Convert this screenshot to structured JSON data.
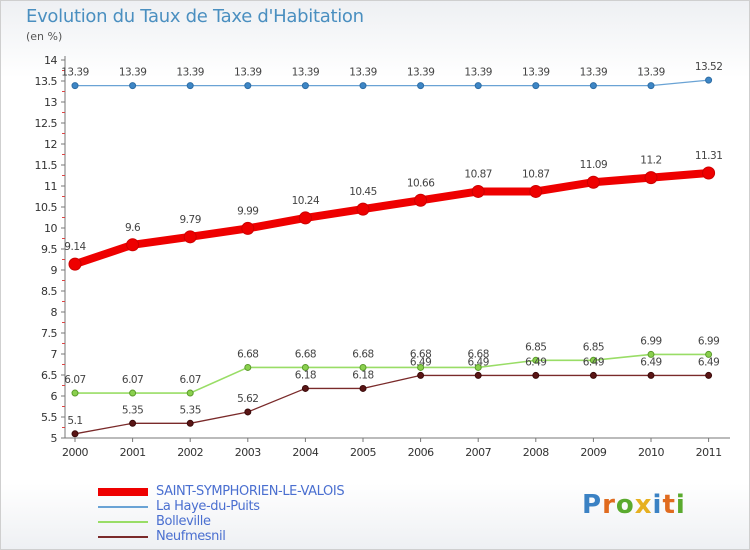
{
  "title": "Evolution du Taux de Taxe d'Habitation",
  "subtitle": "(en %)",
  "logo_text": "Proxiti",
  "colors": {
    "logo_letters": [
      "#3b82c4",
      "#e06b1f",
      "#5aaa2e",
      "#e6b020",
      "#3b82c4",
      "#e06b1f",
      "#5aaa2e"
    ]
  },
  "chart_data": {
    "type": "line",
    "x": [
      "2000",
      "2001",
      "2002",
      "2003",
      "2004",
      "2005",
      "2006",
      "2007",
      "2008",
      "2009",
      "2010",
      "2011"
    ],
    "ylim": [
      5,
      14
    ],
    "yticks": [
      "5",
      "5.5",
      "6",
      "6.5",
      "7",
      "7.5",
      "8",
      "8.5",
      "9",
      "9.5",
      "10",
      "10.5",
      "11",
      "11.5",
      "12",
      "12.5",
      "13",
      "13.5",
      "14"
    ],
    "grid": false,
    "legend_position": "bottom-left",
    "series": [
      {
        "name": "SAINT-SYMPHORIEN-LE-VALOIS",
        "color": "#ee0000",
        "values": [
          9.14,
          9.6,
          9.79,
          9.99,
          10.24,
          10.45,
          10.66,
          10.87,
          10.87,
          11.09,
          11.2,
          11.31
        ],
        "labels": [
          "9.14",
          "9.6",
          "9.79",
          "9.99",
          "10.24",
          "10.45",
          "10.66",
          "10.87",
          "10.87",
          "11.09",
          "11.2",
          "11.31"
        ]
      },
      {
        "name": "La Haye-du-Puits",
        "color": "#6aa3d5",
        "values": [
          13.39,
          13.39,
          13.39,
          13.39,
          13.39,
          13.39,
          13.39,
          13.39,
          13.39,
          13.39,
          13.39,
          13.52
        ],
        "labels": [
          "13.39",
          "13.39",
          "13.39",
          "13.39",
          "13.39",
          "13.39",
          "13.39",
          "13.39",
          "13.39",
          "13.39",
          "13.39",
          "13.52"
        ]
      },
      {
        "name": "Bolleville",
        "color": "#99dd66",
        "values": [
          6.07,
          6.07,
          6.07,
          6.68,
          6.68,
          6.68,
          6.68,
          6.68,
          6.85,
          6.85,
          6.99,
          6.99
        ],
        "labels": [
          "6.07",
          "6.07",
          "6.07",
          "6.68",
          "6.68",
          "6.68",
          "6.68",
          "6.68",
          "6.85",
          "6.85",
          "6.99",
          "6.99"
        ]
      },
      {
        "name": "Neufmesnil",
        "color": "#7a2a2a",
        "values": [
          5.1,
          5.35,
          5.35,
          5.62,
          6.18,
          6.18,
          6.49,
          6.49,
          6.49,
          6.49,
          6.49,
          6.49
        ],
        "labels": [
          "5.1",
          "5.35",
          "5.35",
          "5.62",
          "6.18",
          "6.18",
          "6.49",
          "6.49",
          "6.49",
          "6.49",
          "6.49",
          "6.49"
        ]
      }
    ]
  }
}
